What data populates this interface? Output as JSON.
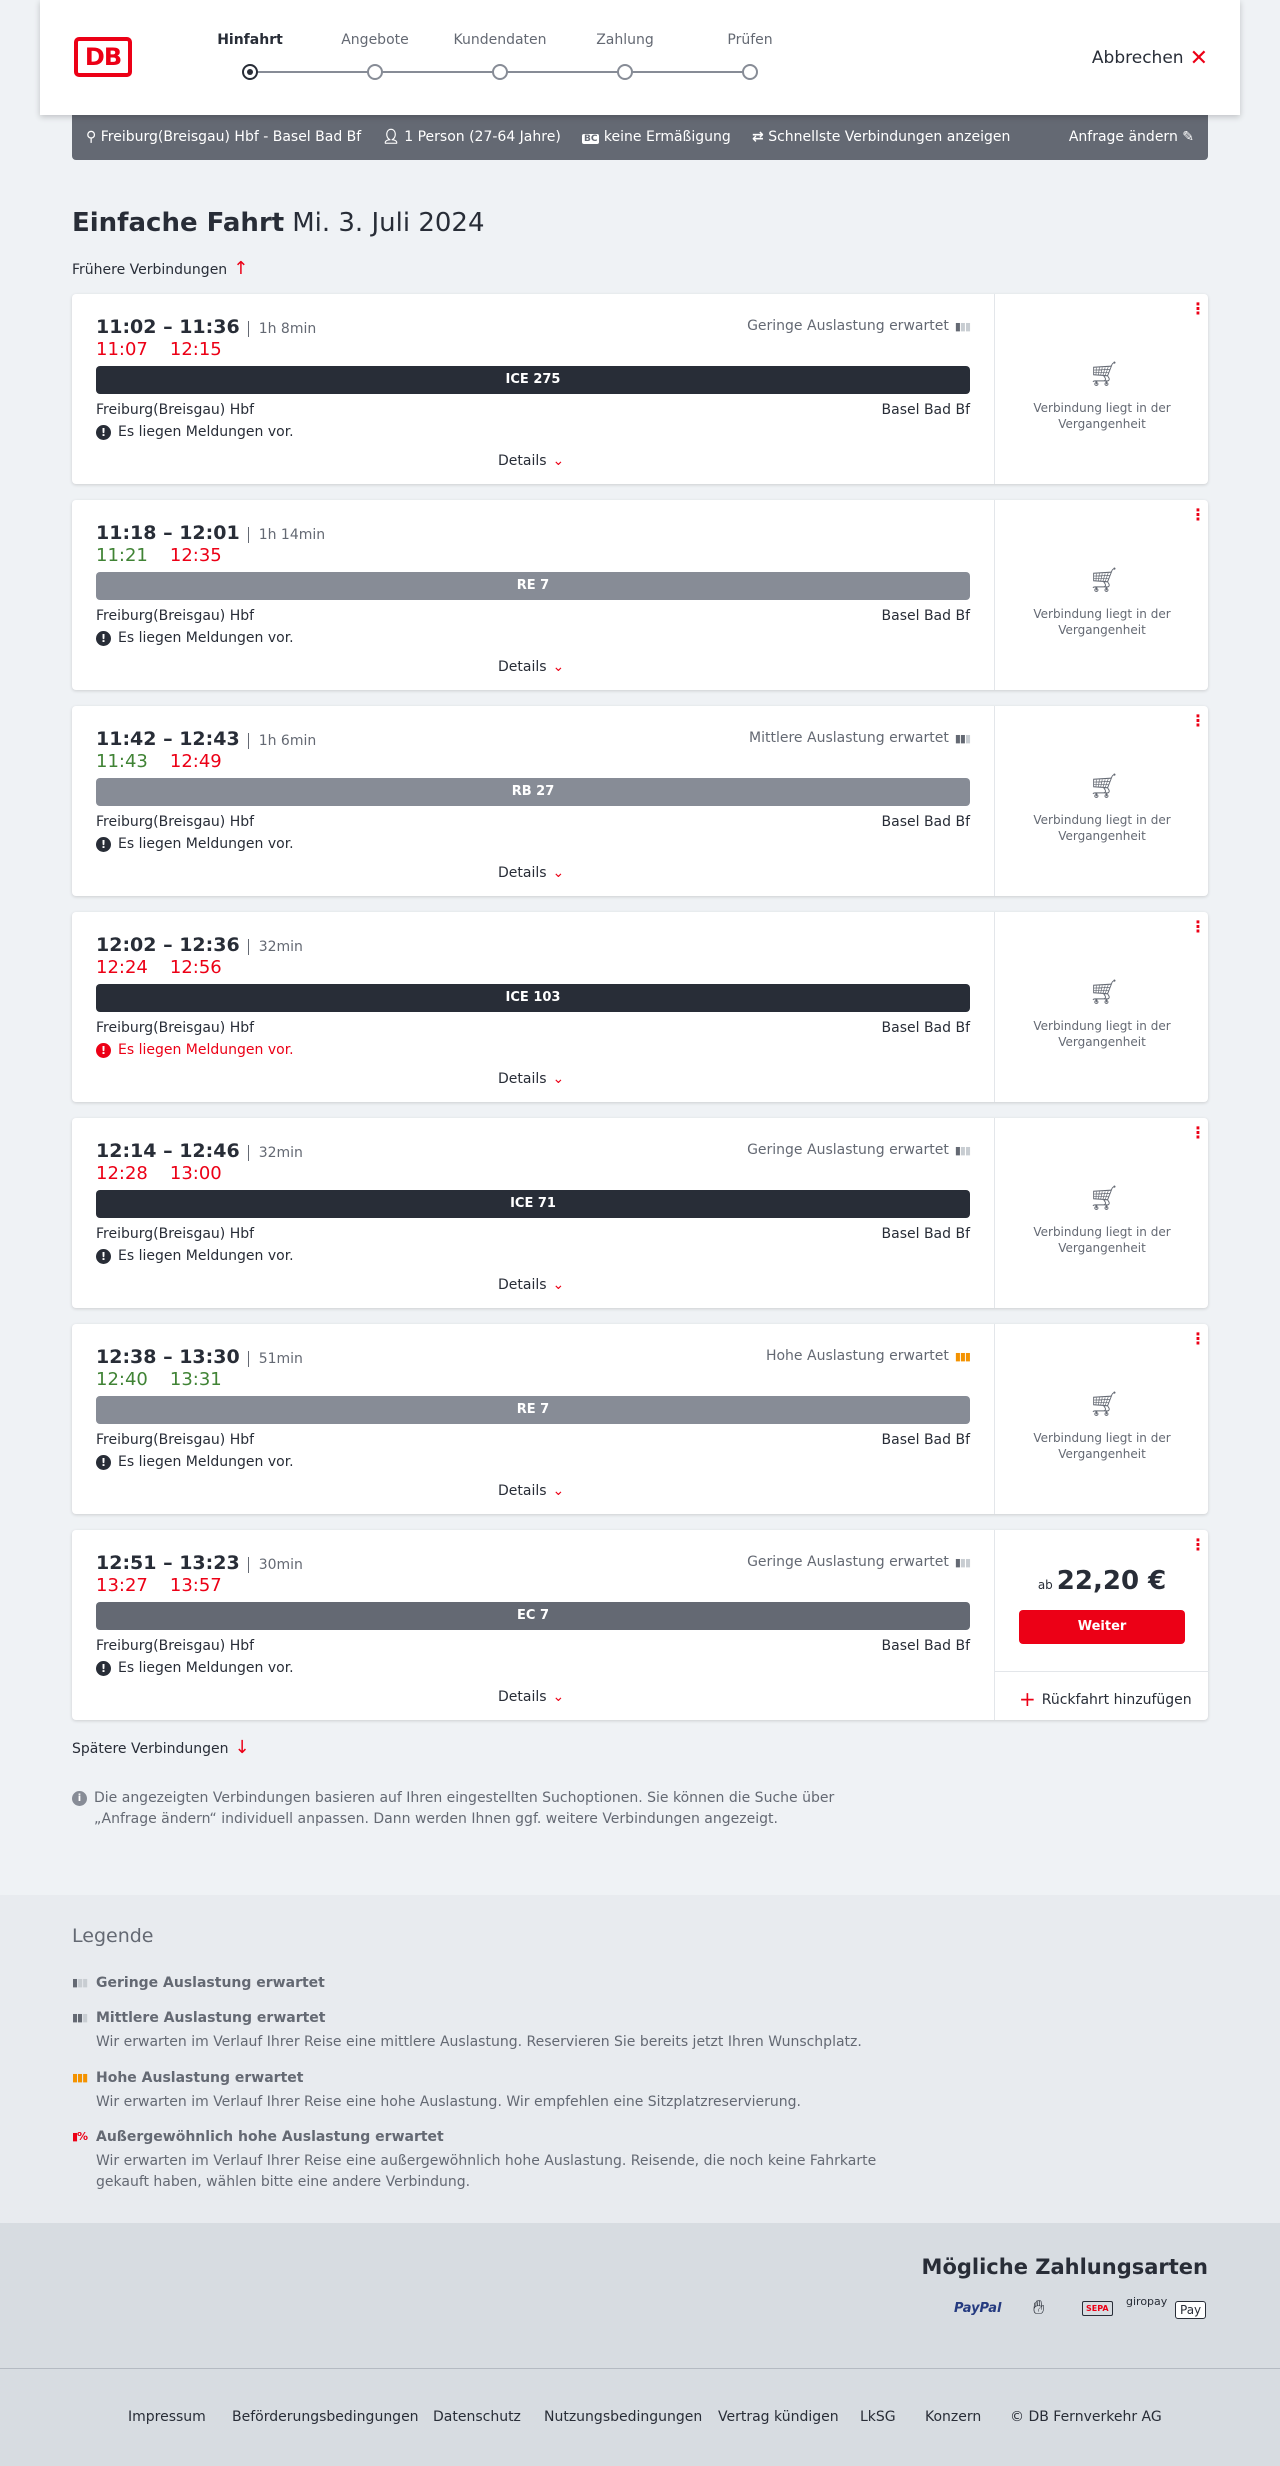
{
  "header": {
    "logo": "DB",
    "steps": [
      "Hinfahrt",
      "Angebote",
      "Kundendaten",
      "Zahlung",
      "Prüfen"
    ],
    "active_step": 0,
    "cancel": "Abbrechen"
  },
  "summary": {
    "route": "Freiburg(Breisgau) Hbf - Basel Bad Bf",
    "persons": "1 Person (27-64 Jahre)",
    "discount_badge": "BC",
    "discount": "keine Ermäßigung",
    "option": "Schnellste Verbindungen anzeigen",
    "change": "Anfrage ändern"
  },
  "title": {
    "main": "Einfache Fahrt",
    "date": "Mi. 3. Juli 2024"
  },
  "earlier": "Frühere Verbindungen",
  "later": "Spätere Verbindungen",
  "colors": {
    "red": "#ec0016",
    "green": "#408335",
    "ice": "#282d37",
    "regional": "#878c96",
    "ec": "#646973",
    "high_load": "#f39200"
  },
  "connections": [
    {
      "time": "11:02 – 11:36",
      "duration": "1h 8min",
      "load": "Geringe Auslastung erwartet",
      "load_level": 1,
      "rt_dep": "11:07",
      "rt_dep_color": "red",
      "rt_arr": "12:15",
      "rt_arr_color": "red",
      "train": "ICE 275",
      "train_color": "ice",
      "from": "Freiburg(Breisgau) Hbf",
      "to": "Basel Bad Bf",
      "message": "Es liegen Meldungen vor.",
      "message_color": "black",
      "details": "Details",
      "status": "Verbindung liegt in der Vergangenheit"
    },
    {
      "time": "11:18 – 12:01",
      "duration": "1h 14min",
      "load": "",
      "load_level": 0,
      "rt_dep": "11:21",
      "rt_dep_color": "green",
      "rt_arr": "12:35",
      "rt_arr_color": "red",
      "train": "RE 7",
      "train_color": "regional",
      "from": "Freiburg(Breisgau) Hbf",
      "to": "Basel Bad Bf",
      "message": "Es liegen Meldungen vor.",
      "message_color": "black",
      "details": "Details",
      "status": "Verbindung liegt in der Vergangenheit"
    },
    {
      "time": "11:42 – 12:43",
      "duration": "1h 6min",
      "load": "Mittlere Auslastung erwartet",
      "load_level": 2,
      "rt_dep": "11:43",
      "rt_dep_color": "green",
      "rt_arr": "12:49",
      "rt_arr_color": "red",
      "train": "RB 27",
      "train_color": "regional",
      "from": "Freiburg(Breisgau) Hbf",
      "to": "Basel Bad Bf",
      "message": "Es liegen Meldungen vor.",
      "message_color": "black",
      "details": "Details",
      "status": "Verbindung liegt in der Vergangenheit"
    },
    {
      "time": "12:02 – 12:36",
      "duration": "32min",
      "load": "",
      "load_level": 0,
      "rt_dep": "12:24",
      "rt_dep_color": "red",
      "rt_arr": "12:56",
      "rt_arr_color": "red",
      "train": "ICE 103",
      "train_color": "ice",
      "from": "Freiburg(Breisgau) Hbf",
      "to": "Basel Bad Bf",
      "message": "Es liegen Meldungen vor.",
      "message_color": "red",
      "details": "Details",
      "status": "Verbindung liegt in der Vergangenheit"
    },
    {
      "time": "12:14 – 12:46",
      "duration": "32min",
      "load": "Geringe Auslastung erwartet",
      "load_level": 1,
      "rt_dep": "12:28",
      "rt_dep_color": "red",
      "rt_arr": "13:00",
      "rt_arr_color": "red",
      "train": "ICE 71",
      "train_color": "ice",
      "from": "Freiburg(Breisgau) Hbf",
      "to": "Basel Bad Bf",
      "message": "Es liegen Meldungen vor.",
      "message_color": "black",
      "details": "Details",
      "status": "Verbindung liegt in der Vergangenheit"
    },
    {
      "time": "12:38 – 13:30",
      "duration": "51min",
      "load": "Hohe Auslastung erwartet",
      "load_level": 3,
      "rt_dep": "12:40",
      "rt_dep_color": "green",
      "rt_arr": "13:31",
      "rt_arr_color": "green",
      "train": "RE 7",
      "train_color": "regional",
      "from": "Freiburg(Breisgau) Hbf",
      "to": "Basel Bad Bf",
      "message": "Es liegen Meldungen vor.",
      "message_color": "black",
      "details": "Details",
      "status": "Verbindung liegt in der Vergangenheit"
    },
    {
      "time": "12:51 – 13:23",
      "duration": "30min",
      "load": "Geringe Auslastung erwartet",
      "load_level": 1,
      "rt_dep": "13:27",
      "rt_dep_color": "red",
      "rt_arr": "13:57",
      "rt_arr_color": "red",
      "train": "EC 7",
      "train_color": "ec",
      "from": "Freiburg(Breisgau) Hbf",
      "to": "Basel Bad Bf",
      "message": "Es liegen Meldungen vor.",
      "message_color": "black",
      "details": "Details",
      "price_prefix": "ab",
      "price": "22,20 €",
      "button": "Weiter",
      "return": "Rückfahrt hinzufügen"
    }
  ],
  "info": "Die angezeigten Verbindungen basieren auf Ihren eingestellten Suchoptionen. Sie können die Suche über „Anfrage ändern“ individuell anpassen. Dann werden Ihnen ggf. weitere Verbindungen angezeigt.",
  "legend": {
    "title": "Legende",
    "items": [
      {
        "title": "Geringe Auslastung erwartet",
        "text": ""
      },
      {
        "title": "Mittlere Auslastung erwartet",
        "text": "Wir erwarten im Verlauf Ihrer Reise eine mittlere Auslastung. Reservieren Sie bereits jetzt Ihren Wunschplatz."
      },
      {
        "title": "Hohe Auslastung erwartet",
        "text": "Wir erwarten im Verlauf Ihrer Reise eine hohe Auslastung. Wir empfehlen eine Sitzplatzreservierung."
      },
      {
        "title": "Außergewöhnlich hohe Auslastung erwartet",
        "text": "Wir erwarten im Verlauf Ihrer Reise eine außergewöhnlich hohe Auslastung. Reisende, die noch keine Fahrkarte gekauft haben, wählen bitte eine andere Verbindung."
      }
    ]
  },
  "payment": {
    "title": "Mögliche Zahlungsarten",
    "methods": [
      "PayPal",
      "Kreditkarte",
      "SEPA",
      "giropay",
      "Pay"
    ]
  },
  "footer": [
    "Impressum",
    "Beförderungsbedingungen",
    "Datenschutz",
    "Nutzungsbedingungen",
    "Vertrag kündigen",
    "LkSG",
    "Konzern",
    "© DB Fernverkehr AG"
  ]
}
